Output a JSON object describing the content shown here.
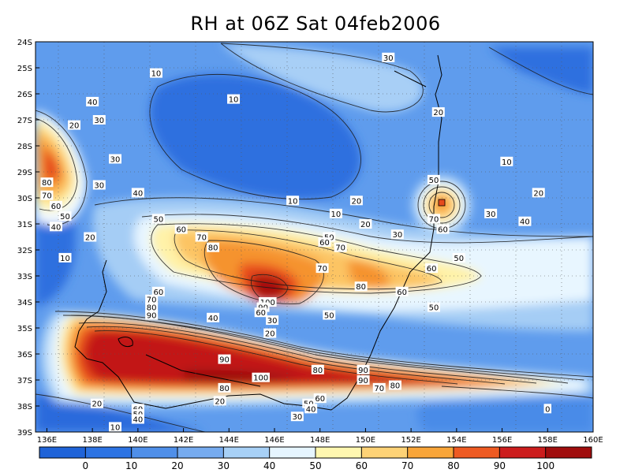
{
  "title": "RH at 06Z Sat 04feb2006",
  "map": {
    "lat_labels": [
      "24S",
      "25S",
      "26S",
      "27S",
      "28S",
      "29S",
      "30S",
      "31S",
      "32S",
      "33S",
      "34S",
      "35S",
      "36S",
      "37S",
      "38S",
      "39S"
    ],
    "lon_labels": [
      "136E",
      "138E",
      "140E",
      "142E",
      "144E",
      "146E",
      "148E",
      "150E",
      "152E",
      "154E",
      "156E",
      "158E",
      "160E"
    ],
    "lat_range": [
      -39,
      -24
    ],
    "lon_range": [
      135.5,
      160
    ],
    "grid": "dotted",
    "contour_labels": [
      {
        "text": "30",
        "lon": 151.0,
        "lat": -24.6
      },
      {
        "text": "10",
        "lon": 140.8,
        "lat": -25.2
      },
      {
        "text": "10",
        "lon": 144.2,
        "lat": -26.2
      },
      {
        "text": "40",
        "lon": 138.0,
        "lat": -26.3
      },
      {
        "text": "30",
        "lon": 138.3,
        "lat": -27.0
      },
      {
        "text": "20",
        "lon": 137.2,
        "lat": -27.2
      },
      {
        "text": "20",
        "lon": 153.2,
        "lat": -26.7
      },
      {
        "text": "10",
        "lon": 156.2,
        "lat": -28.6
      },
      {
        "text": "30",
        "lon": 139.0,
        "lat": -28.5
      },
      {
        "text": "30",
        "lon": 138.3,
        "lat": -29.5
      },
      {
        "text": "40",
        "lon": 140.0,
        "lat": -29.8
      },
      {
        "text": "80",
        "lon": 136.0,
        "lat": -29.4
      },
      {
        "text": "70",
        "lon": 136.0,
        "lat": -29.9
      },
      {
        "text": "60",
        "lon": 136.4,
        "lat": -30.3
      },
      {
        "text": "50",
        "lon": 136.8,
        "lat": -30.7
      },
      {
        "text": "40",
        "lon": 136.4,
        "lat": -31.1
      },
      {
        "text": "10",
        "lon": 146.8,
        "lat": -30.1
      },
      {
        "text": "20",
        "lon": 149.6,
        "lat": -30.1
      },
      {
        "text": "10",
        "lon": 148.7,
        "lat": -30.6
      },
      {
        "text": "20",
        "lon": 150.0,
        "lat": -31.0
      },
      {
        "text": "30",
        "lon": 151.4,
        "lat": -31.4
      },
      {
        "text": "20",
        "lon": 157.6,
        "lat": -29.8
      },
      {
        "text": "30",
        "lon": 155.5,
        "lat": -30.6
      },
      {
        "text": "40",
        "lon": 157.0,
        "lat": -30.9
      },
      {
        "text": "50",
        "lon": 153.0,
        "lat": -29.3
      },
      {
        "text": "70",
        "lon": 153.0,
        "lat": -30.8
      },
      {
        "text": "60",
        "lon": 153.4,
        "lat": -31.2
      },
      {
        "text": "50",
        "lon": 140.9,
        "lat": -30.8
      },
      {
        "text": "60",
        "lon": 141.9,
        "lat": -31.2
      },
      {
        "text": "20",
        "lon": 137.9,
        "lat": -31.5
      },
      {
        "text": "70",
        "lon": 142.8,
        "lat": -31.5
      },
      {
        "text": "80",
        "lon": 143.3,
        "lat": -31.9
      },
      {
        "text": "10",
        "lon": 136.8,
        "lat": -32.3
      },
      {
        "text": "50",
        "lon": 148.4,
        "lat": -31.5
      },
      {
        "text": "60",
        "lon": 148.2,
        "lat": -31.7
      },
      {
        "text": "70",
        "lon": 148.9,
        "lat": -31.9
      },
      {
        "text": "50",
        "lon": 154.1,
        "lat": -32.3
      },
      {
        "text": "60",
        "lon": 152.9,
        "lat": -32.7
      },
      {
        "text": "70",
        "lon": 148.1,
        "lat": -32.7
      },
      {
        "text": "80",
        "lon": 149.8,
        "lat": -33.4
      },
      {
        "text": "60",
        "lon": 151.6,
        "lat": -33.6
      },
      {
        "text": "60",
        "lon": 140.9,
        "lat": -33.6
      },
      {
        "text": "70",
        "lon": 140.6,
        "lat": -33.9
      },
      {
        "text": "80",
        "lon": 140.6,
        "lat": -34.2
      },
      {
        "text": "90",
        "lon": 140.6,
        "lat": -34.5
      },
      {
        "text": "100",
        "lon": 145.7,
        "lat": -34.0
      },
      {
        "text": "90",
        "lon": 145.5,
        "lat": -34.2
      },
      {
        "text": "60",
        "lon": 145.4,
        "lat": -34.4
      },
      {
        "text": "40",
        "lon": 143.3,
        "lat": -34.6
      },
      {
        "text": "30",
        "lon": 145.9,
        "lat": -34.7
      },
      {
        "text": "50",
        "lon": 148.4,
        "lat": -34.5
      },
      {
        "text": "50",
        "lon": 153.0,
        "lat": -34.2
      },
      {
        "text": "20",
        "lon": 145.8,
        "lat": -35.2
      },
      {
        "text": "90",
        "lon": 143.8,
        "lat": -36.2
      },
      {
        "text": "80",
        "lon": 147.9,
        "lat": -36.6
      },
      {
        "text": "90",
        "lon": 149.9,
        "lat": -36.6
      },
      {
        "text": "100",
        "lon": 145.4,
        "lat": -36.9
      },
      {
        "text": "90",
        "lon": 149.9,
        "lat": -37.0
      },
      {
        "text": "80",
        "lon": 143.8,
        "lat": -37.3
      },
      {
        "text": "70",
        "lon": 150.6,
        "lat": -37.3
      },
      {
        "text": "80",
        "lon": 151.3,
        "lat": -37.2
      },
      {
        "text": "20",
        "lon": 143.6,
        "lat": -37.8
      },
      {
        "text": "60",
        "lon": 148.0,
        "lat": -37.7
      },
      {
        "text": "50",
        "lon": 147.5,
        "lat": -37.9
      },
      {
        "text": "40",
        "lon": 147.6,
        "lat": -38.1
      },
      {
        "text": "30",
        "lon": 147.0,
        "lat": -38.4
      },
      {
        "text": "60",
        "lon": 140.0,
        "lat": -38.1
      },
      {
        "text": "50",
        "lon": 140.0,
        "lat": -38.3
      },
      {
        "text": "40",
        "lon": 140.0,
        "lat": -38.5
      },
      {
        "text": "20",
        "lon": 138.2,
        "lat": -37.9
      },
      {
        "text": "10",
        "lon": 139.0,
        "lat": -38.8
      },
      {
        "text": "0",
        "lon": 158.0,
        "lat": -38.1
      }
    ]
  },
  "colorbar": {
    "labels": [
      "0",
      "10",
      "20",
      "30",
      "40",
      "50",
      "60",
      "70",
      "80",
      "90",
      "100"
    ],
    "colors": [
      "#1f63d8",
      "#2c73e3",
      "#4f8fe9",
      "#76abef",
      "#a7d0f6",
      "#e6f5ff",
      "#fff7b0",
      "#fdd276",
      "#f8a539",
      "#ee5a22",
      "#cc1d1d",
      "#a00d0d"
    ]
  },
  "shade_colors": {
    "c0": "#1f63d8",
    "c10": "#2f77e4",
    "c20": "#5a98ec",
    "c30": "#80b4f1",
    "c40": "#b4d8f8",
    "c50": "#eaf7ff",
    "c60": "#fff4b0",
    "c70": "#fdc66a",
    "c80": "#f79a32",
    "c90": "#ea4f1f",
    "c100": "#c41717",
    "c110": "#990c0c"
  }
}
